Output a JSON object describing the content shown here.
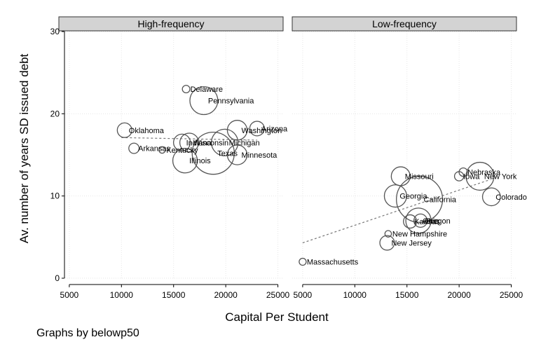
{
  "chart_data": {
    "type": "scatter",
    "style": "weighted-bubble",
    "xlabel": "Capital Per Student",
    "ylabel": "Av. number of years SD issued debt",
    "xlim": [
      4000,
      25500
    ],
    "ylim": [
      0,
      30
    ],
    "xticks": [
      5000,
      10000,
      15000,
      20000,
      25000
    ],
    "yticks": [
      0,
      10,
      20,
      30
    ],
    "grid": true,
    "note": "Graphs by belowp50",
    "colors": {
      "marker": "#555555",
      "fit_line": "#777777",
      "strip": "#d3d3d3",
      "grid": "#e6e6e6"
    },
    "panels": [
      {
        "name": "High-frequency",
        "fit": [
          [
            10000,
            17.1
          ],
          [
            23000,
            16.8
          ]
        ],
        "points": [
          {
            "label": "Delaware",
            "x": 16200,
            "y": 23.0,
            "w": 0.08
          },
          {
            "label": "Pennsylvania",
            "x": 17900,
            "y": 21.6,
            "w": 1.1
          },
          {
            "label": "Oklahoma",
            "x": 10300,
            "y": 18.0,
            "w": 0.3
          },
          {
            "label": "Washington",
            "x": 21100,
            "y": 18.0,
            "w": 0.55
          },
          {
            "label": "Arizona",
            "x": 23000,
            "y": 18.2,
            "w": 0.3
          },
          {
            "label": "Arkansas",
            "x": 11200,
            "y": 15.8,
            "w": 0.15
          },
          {
            "label": "Indiana",
            "x": 15800,
            "y": 16.5,
            "w": 0.4
          },
          {
            "label": "Wisconsin",
            "x": 16500,
            "y": 16.5,
            "w": 0.5
          },
          {
            "label": "Kentucky",
            "x": 13900,
            "y": 15.6,
            "w": 0.06
          },
          {
            "label": "Michigan",
            "x": 19900,
            "y": 16.5,
            "w": 1.0
          },
          {
            "label": "Texas",
            "x": 18800,
            "y": 15.2,
            "w": 2.5
          },
          {
            "label": "Minnesota",
            "x": 21100,
            "y": 15.0,
            "w": 0.55
          },
          {
            "label": "Illinois",
            "x": 16100,
            "y": 14.3,
            "w": 0.85
          }
        ]
      },
      {
        "name": "Low-frequency",
        "fit": [
          [
            5000,
            4.3
          ],
          [
            23000,
            12.0
          ]
        ],
        "points": [
          {
            "label": "Massachusetts",
            "x": 5000,
            "y": 2.0,
            "w": 0.07
          },
          {
            "label": "New Jersey",
            "x": 13100,
            "y": 4.3,
            "w": 0.3
          },
          {
            "label": "New Hampshire",
            "x": 13200,
            "y": 5.4,
            "w": 0.06
          },
          {
            "label": "Kansas",
            "x": 15300,
            "y": 6.9,
            "w": 0.25
          },
          {
            "label": "Ohio",
            "x": 16100,
            "y": 7.0,
            "w": 0.9
          },
          {
            "label": "Oregon",
            "x": 16300,
            "y": 7.0,
            "w": 0.25
          },
          {
            "label": "Georgia",
            "x": 13900,
            "y": 10.0,
            "w": 0.7
          },
          {
            "label": "California",
            "x": 16200,
            "y": 9.6,
            "w": 3.0
          },
          {
            "label": "Missouri",
            "x": 14400,
            "y": 12.4,
            "w": 0.5
          },
          {
            "label": "Iowa",
            "x": 20000,
            "y": 12.4,
            "w": 0.12
          },
          {
            "label": "Nebraska",
            "x": 20400,
            "y": 12.9,
            "w": 0.1
          },
          {
            "label": "New York",
            "x": 22000,
            "y": 12.4,
            "w": 1.1
          },
          {
            "label": "Colorado",
            "x": 23100,
            "y": 9.9,
            "w": 0.45
          }
        ]
      }
    ]
  }
}
